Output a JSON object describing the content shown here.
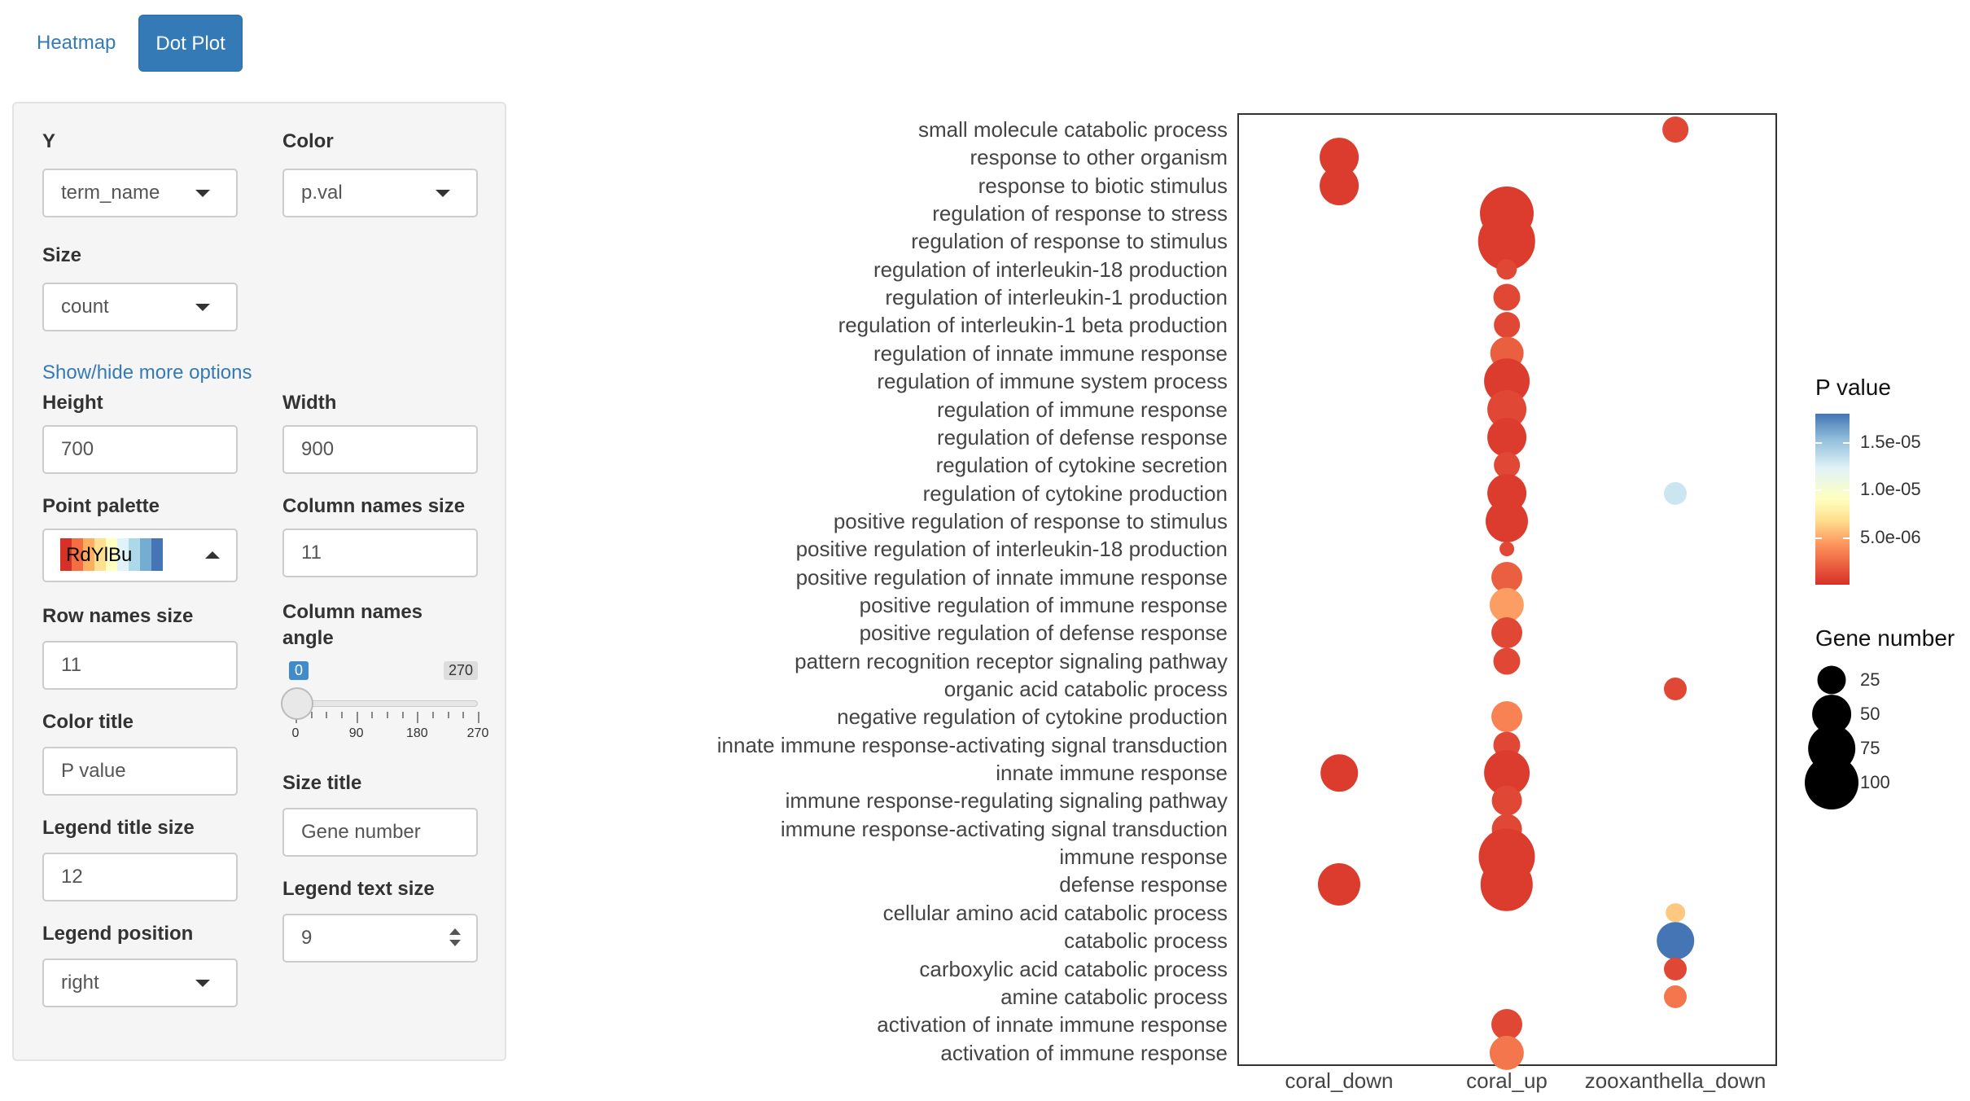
{
  "tabs": [
    {
      "label": "Heatmap",
      "active": false
    },
    {
      "label": "Dot Plot",
      "active": true
    }
  ],
  "controls": {
    "y": {
      "label": "Y",
      "value": "term_name"
    },
    "color": {
      "label": "Color",
      "value": "p.val"
    },
    "size": {
      "label": "Size",
      "value": "count"
    },
    "more_options_link": "Show/hide more options",
    "height": {
      "label": "Height",
      "value": "700"
    },
    "width": {
      "label": "Width",
      "value": "900"
    },
    "point_palette": {
      "label": "Point palette",
      "value": "RdYlBu",
      "swatches": [
        "#d73027",
        "#f46d43",
        "#fdae61",
        "#fee090",
        "#ffffbf",
        "#e0f3f8",
        "#abd9e9",
        "#74add1",
        "#4575b4"
      ]
    },
    "column_names_size": {
      "label": "Column names size",
      "value": "11"
    },
    "row_names_size": {
      "label": "Row names size",
      "value": "11"
    },
    "column_names_angle": {
      "label_line1": "Column names",
      "label_line2": "angle",
      "value": 0,
      "min": 0,
      "max": 270,
      "min_label": "0",
      "max_label": "270",
      "tick_labels": [
        "0",
        "90",
        "180",
        "270"
      ]
    },
    "color_title": {
      "label": "Color title",
      "value": "P value"
    },
    "size_title": {
      "label": "Size title",
      "value": "Gene number"
    },
    "legend_title_size": {
      "label": "Legend title size",
      "value": "12"
    },
    "legend_text_size": {
      "label": "Legend text size",
      "value": "9"
    },
    "legend_position": {
      "label": "Legend position",
      "value": "right"
    }
  },
  "chart_data": {
    "type": "scatter",
    "columns": [
      "coral_down",
      "coral_up",
      "zooxanthella_down"
    ],
    "rows": [
      "small molecule catabolic process",
      "response to other organism",
      "response to biotic stimulus",
      "regulation of response to stress",
      "regulation of response to stimulus",
      "regulation of interleukin-18 production",
      "regulation of interleukin-1 production",
      "regulation of interleukin-1 beta production",
      "regulation of innate immune response",
      "regulation of immune system process",
      "regulation of immune response",
      "regulation of defense response",
      "regulation of cytokine secretion",
      "regulation of cytokine production",
      "positive regulation of response to stimulus",
      "positive regulation of interleukin-18 production",
      "positive regulation of innate immune response",
      "positive regulation of immune response",
      "positive regulation of defense response",
      "pattern recognition receptor signaling pathway",
      "organic acid catabolic process",
      "negative regulation of cytokine production",
      "innate immune response-activating signal transduction",
      "innate immune response",
      "immune response-regulating signaling pathway",
      "immune response-activating signal transduction",
      "immune response",
      "defense response",
      "cellular amino acid catabolic process",
      "catabolic process",
      "carboxylic acid catabolic process",
      "amine catabolic process",
      "activation of innate immune response",
      "activation of immune response"
    ],
    "points": [
      {
        "row": "small molecule catabolic process",
        "col": "zooxanthella_down",
        "count": 20,
        "p": 1e-06
      },
      {
        "row": "response to other organism",
        "col": "coral_down",
        "count": 50,
        "p": 5e-07
      },
      {
        "row": "response to biotic stimulus",
        "col": "coral_down",
        "count": 50,
        "p": 5e-07
      },
      {
        "row": "regulation of response to stress",
        "col": "coral_up",
        "count": 100,
        "p": 5e-07
      },
      {
        "row": "regulation of response to stimulus",
        "col": "coral_up",
        "count": 115,
        "p": 5e-07
      },
      {
        "row": "regulation of interleukin-18 production",
        "col": "coral_up",
        "count": 12,
        "p": 1e-06
      },
      {
        "row": "regulation of interleukin-1 production",
        "col": "coral_up",
        "count": 22,
        "p": 1e-06
      },
      {
        "row": "regulation of interleukin-1 beta production",
        "col": "coral_up",
        "count": 20,
        "p": 1e-06
      },
      {
        "row": "regulation of innate immune response",
        "col": "coral_up",
        "count": 35,
        "p": 2e-06
      },
      {
        "row": "regulation of immune system process",
        "col": "coral_up",
        "count": 70,
        "p": 5e-07
      },
      {
        "row": "regulation of immune response",
        "col": "coral_up",
        "count": 50,
        "p": 1e-06
      },
      {
        "row": "regulation of defense response",
        "col": "coral_up",
        "count": 50,
        "p": 5e-07
      },
      {
        "row": "regulation of cytokine secretion",
        "col": "coral_up",
        "count": 20,
        "p": 1e-06
      },
      {
        "row": "regulation of cytokine production",
        "col": "coral_up",
        "count": 50,
        "p": 5e-07
      },
      {
        "row": "regulation of cytokine production",
        "col": "zooxanthella_down",
        "count": 15,
        "p": 1.3e-05
      },
      {
        "row": "positive regulation of response to stimulus",
        "col": "coral_up",
        "count": 60,
        "p": 5e-07
      },
      {
        "row": "positive regulation of interleukin-18 production",
        "col": "coral_up",
        "count": 5,
        "p": 1e-06
      },
      {
        "row": "positive regulation of innate immune response",
        "col": "coral_up",
        "count": 30,
        "p": 2e-06
      },
      {
        "row": "positive regulation of immune response",
        "col": "coral_up",
        "count": 38,
        "p": 4.5e-06
      },
      {
        "row": "positive regulation of defense response",
        "col": "coral_up",
        "count": 30,
        "p": 1e-06
      },
      {
        "row": "pattern recognition receptor signaling pathway",
        "col": "coral_up",
        "count": 22,
        "p": 1e-06
      },
      {
        "row": "organic acid catabolic process",
        "col": "zooxanthella_down",
        "count": 15,
        "p": 1e-06
      },
      {
        "row": "negative regulation of cytokine production",
        "col": "coral_up",
        "count": 30,
        "p": 3.5e-06
      },
      {
        "row": "innate immune response-activating signal transduction",
        "col": "coral_up",
        "count": 22,
        "p": 1e-06
      },
      {
        "row": "innate immune response",
        "col": "coral_down",
        "count": 45,
        "p": 5e-07
      },
      {
        "row": "innate immune response",
        "col": "coral_up",
        "count": 70,
        "p": 5e-07
      },
      {
        "row": "immune response-regulating signaling pathway",
        "col": "coral_up",
        "count": 28,
        "p": 1e-06
      },
      {
        "row": "immune response-activating signal transduction",
        "col": "coral_up",
        "count": 28,
        "p": 1e-06
      },
      {
        "row": "immune response",
        "col": "coral_up",
        "count": 110,
        "p": 5e-07
      },
      {
        "row": "defense response",
        "col": "coral_down",
        "count": 60,
        "p": 5e-07
      },
      {
        "row": "defense response",
        "col": "coral_up",
        "count": 95,
        "p": 5e-07
      },
      {
        "row": "cellular amino acid catabolic process",
        "col": "zooxanthella_down",
        "count": 10,
        "p": 6e-06
      },
      {
        "row": "catabolic process",
        "col": "zooxanthella_down",
        "count": 45,
        "p": 1.8e-05
      },
      {
        "row": "carboxylic acid catabolic process",
        "col": "zooxanthella_down",
        "count": 15,
        "p": 1e-06
      },
      {
        "row": "amine catabolic process",
        "col": "zooxanthella_down",
        "count": 15,
        "p": 3e-06
      },
      {
        "row": "activation of innate immune response",
        "col": "coral_up",
        "count": 30,
        "p": 1e-06
      },
      {
        "row": "activation of immune response",
        "col": "coral_up",
        "count": 38,
        "p": 3e-06
      }
    ],
    "color_legend": {
      "title": "P value",
      "ticks": [
        {
          "label": "1.5e-05",
          "value": 1.5e-05
        },
        {
          "label": "1.0e-05",
          "value": 1e-05
        },
        {
          "label": "5.0e-06",
          "value": 5e-06
        }
      ],
      "range": [
        0,
        1.8e-05
      ]
    },
    "size_legend": {
      "title": "Gene number",
      "entries": [
        {
          "label": "25",
          "value": 25
        },
        {
          "label": "50",
          "value": 50
        },
        {
          "label": "75",
          "value": 75
        },
        {
          "label": "100",
          "value": 100
        }
      ]
    },
    "legend_position": "right"
  }
}
